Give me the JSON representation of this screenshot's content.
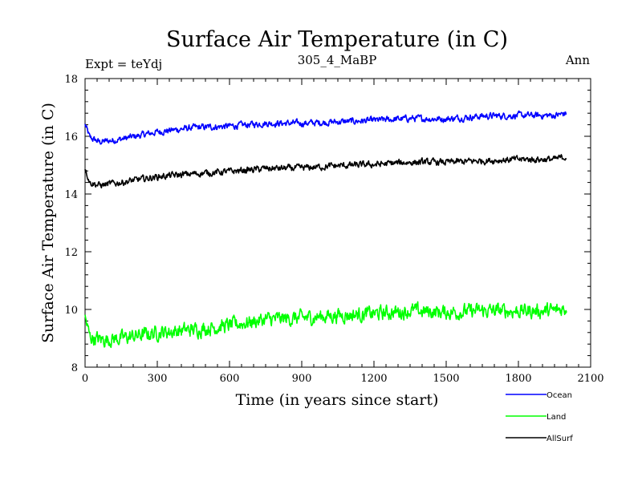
{
  "chart_data": {
    "type": "line",
    "title": "Surface Air Temperature (in C)",
    "subtitle_left": "Expt = teYdj",
    "subtitle_center": "305_4_MaBP",
    "subtitle_right": "Ann",
    "xlabel": "Time (in years since start)",
    "ylabel": "Surface Air Temperature (in C)",
    "xlim": [
      0,
      2100
    ],
    "ylim": [
      8,
      18
    ],
    "x_ticks": [
      0,
      300,
      600,
      900,
      1200,
      1500,
      1800,
      2100
    ],
    "y_ticks": [
      8,
      10,
      12,
      14,
      16,
      18
    ],
    "x_range_of_data": [
      0,
      2000
    ],
    "series": [
      {
        "name": "Ocean",
        "color": "#0000ff",
        "anchors_x": [
          0,
          20,
          60,
          150,
          300,
          450,
          600,
          750,
          900,
          1050,
          1200,
          1350,
          1500,
          1650,
          1800,
          1950,
          2000
        ],
        "anchors_y": [
          16.4,
          15.95,
          15.8,
          15.9,
          16.15,
          16.3,
          16.35,
          16.45,
          16.45,
          16.5,
          16.55,
          16.62,
          16.6,
          16.7,
          16.72,
          16.72,
          16.8
        ],
        "noise": 0.09
      },
      {
        "name": "Land",
        "color": "#00ff00",
        "anchors_x": [
          0,
          20,
          60,
          150,
          300,
          450,
          600,
          750,
          900,
          1050,
          1200,
          1350,
          1500,
          1650,
          1800,
          1950,
          2000
        ],
        "anchors_y": [
          9.7,
          9.05,
          8.95,
          9.0,
          9.2,
          9.3,
          9.45,
          9.65,
          9.7,
          9.8,
          9.85,
          9.95,
          9.9,
          9.95,
          9.95,
          9.95,
          10.05
        ],
        "noise": 0.2
      },
      {
        "name": "AllSurf",
        "color": "#000000",
        "anchors_x": [
          0,
          20,
          60,
          150,
          300,
          450,
          600,
          750,
          900,
          1050,
          1200,
          1350,
          1500,
          1650,
          1800,
          1950,
          2000
        ],
        "anchors_y": [
          14.9,
          14.4,
          14.3,
          14.4,
          14.6,
          14.7,
          14.78,
          14.88,
          14.9,
          14.98,
          15.02,
          15.1,
          15.1,
          15.15,
          15.2,
          15.2,
          15.3
        ],
        "noise": 0.09
      }
    ],
    "legend": [
      "Ocean",
      "Land",
      "AllSurf"
    ],
    "legend_position": "bottom-right"
  }
}
